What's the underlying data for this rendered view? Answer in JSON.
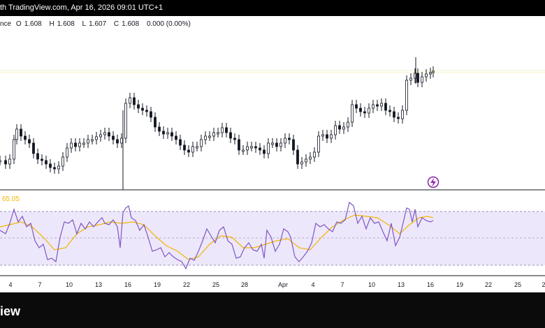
{
  "header": {
    "text": "th TradingView.com, Apr 16, 2026 09:01 UTC+1"
  },
  "legend": {
    "prefix": "nce",
    "open_key": "O",
    "open_value": "1.608",
    "high_key": "H",
    "high_value": "1.608",
    "low_key": "L",
    "low_value": "1.607",
    "close_key": "C",
    "close_value": "1.608",
    "change": "0.000 (0.00%)"
  },
  "rsi": {
    "value_label": "65.05"
  },
  "xaxis": {
    "labels": [
      "4",
      "7",
      "10",
      "13",
      "16",
      "19",
      "22",
      "25",
      "28",
      "Apr",
      "4",
      "7",
      "10",
      "13",
      "16",
      "19",
      "22",
      "25",
      "2"
    ]
  },
  "footer": {
    "brand": "iew"
  },
  "colors": {
    "candle": "#131722",
    "rsi_line": "#7e57c2",
    "rsi_ma": "#f2b600",
    "rsi_band": "#ede7fb",
    "flash_icon": "#8e24aa"
  },
  "chart_data": {
    "type": "candlestick",
    "dates": [
      "Mar 4",
      "Mar 7",
      "Mar 10",
      "Mar 13",
      "Mar 16",
      "Mar 19",
      "Mar 22",
      "Mar 25",
      "Mar 28",
      "Apr 1",
      "Apr 4",
      "Apr 7",
      "Apr 10",
      "Apr 13",
      "Apr 16"
    ],
    "close_approx": [
      1.56,
      1.545,
      1.53,
      1.565,
      1.585,
      1.575,
      1.555,
      1.57,
      1.55,
      1.56,
      1.53,
      1.555,
      1.585,
      1.58,
      1.608
    ],
    "rsi_current": 65.05,
    "rsi_levels": [
      70,
      50,
      30
    ]
  }
}
